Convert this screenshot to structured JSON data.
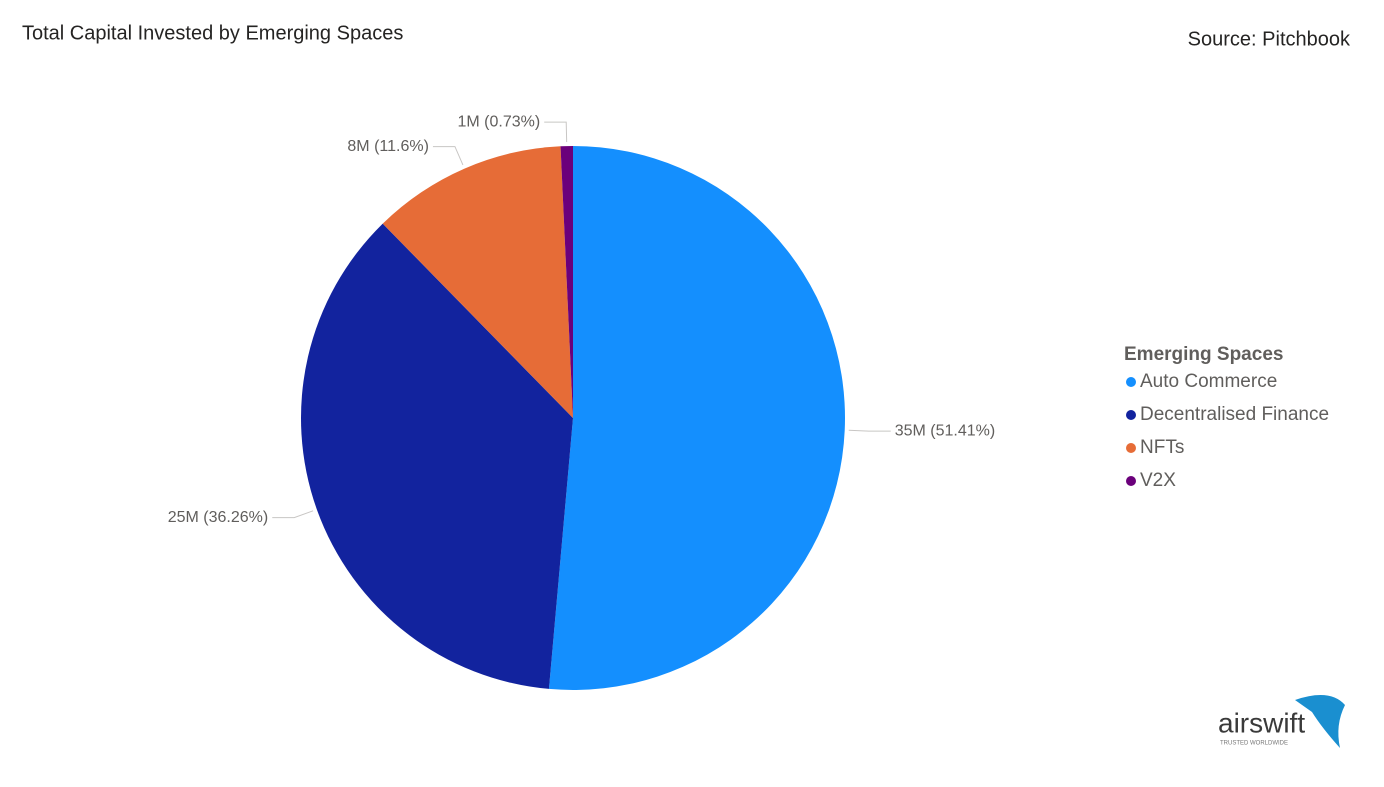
{
  "chart_data": {
    "type": "pie",
    "title": "Total Capital Invested by Emerging Spaces",
    "source": "Source: Pitchbook",
    "legend_title": "Emerging Spaces",
    "legend_position": "right",
    "categories": [
      "Auto Commerce",
      "Decentralised Finance",
      "NFTs",
      "V2X"
    ],
    "values": [
      51.41,
      36.26,
      11.6,
      0.73
    ],
    "value_labels": [
      "35M (51.41%)",
      "25M (36.26%)",
      "8M (11.6%)",
      "1M (0.73%)"
    ],
    "colors": [
      "#148ffe",
      "#12239e",
      "#e66c37",
      "#6b007b"
    ]
  },
  "logo": {
    "name": "airswift",
    "tagline": "TRUSTED WORLDWIDE"
  }
}
